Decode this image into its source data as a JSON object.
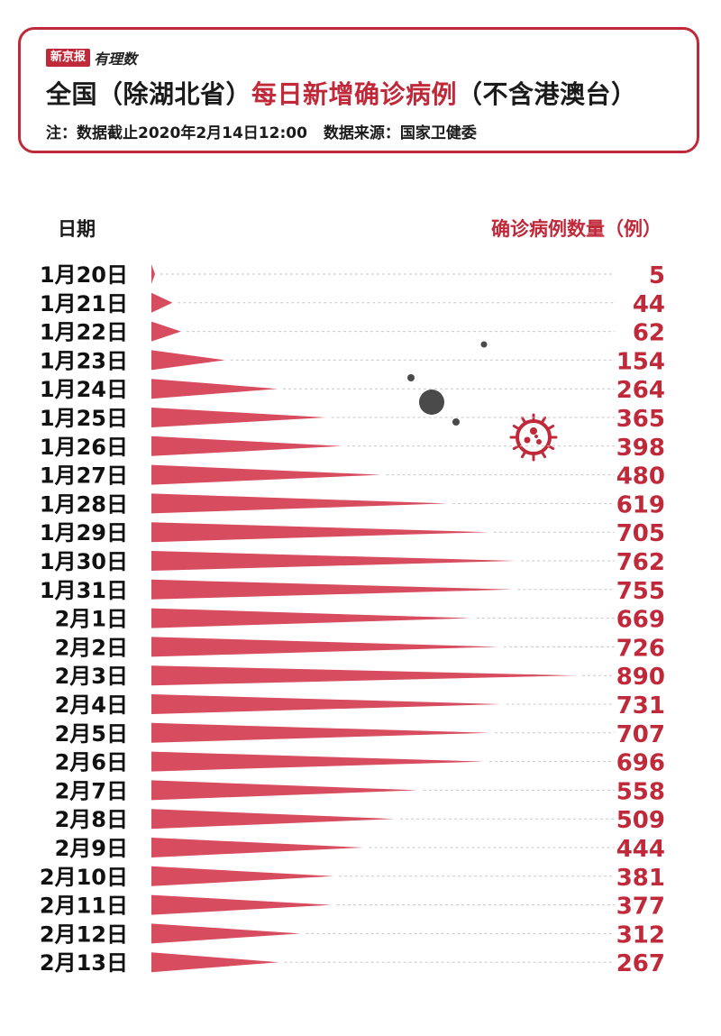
{
  "header": {
    "logo_box": "新京报",
    "logo_script": "有理数",
    "title_black_1": "全国（除湖北省）",
    "title_red": "每日新增确诊病例",
    "title_black_2": "（不含港澳台）",
    "note_label": "注：数据截止2020年2月14日12:00",
    "source_label": "数据来源：国家卫健委"
  },
  "columns": {
    "date": "日期",
    "count": "确诊病例数量（例）"
  },
  "colors": {
    "accent": "#c0293a",
    "bar": "#d74c5e",
    "virus": "#c0293a",
    "dots": "#4a4a4a"
  },
  "chart_data": {
    "type": "bar",
    "orientation": "horizontal",
    "title": "全国（除湖北省）每日新增确诊病例（不含港澳台）",
    "xlabel": "确诊病例数量（例）",
    "ylabel": "日期",
    "categories": [
      "1月20日",
      "1月21日",
      "1月22日",
      "1月23日",
      "1月24日",
      "1月25日",
      "1月26日",
      "1月27日",
      "1月28日",
      "1月29日",
      "1月30日",
      "1月31日",
      "2月1日",
      "2月2日",
      "2月3日",
      "2月4日",
      "2月5日",
      "2月6日",
      "2月7日",
      "2月8日",
      "2月9日",
      "2月10日",
      "2月11日",
      "2月12日",
      "2月13日"
    ],
    "values": [
      5,
      44,
      62,
      154,
      264,
      365,
      398,
      480,
      619,
      705,
      762,
      755,
      669,
      726,
      890,
      731,
      707,
      696,
      558,
      509,
      444,
      381,
      377,
      312,
      267
    ],
    "xlim": [
      0,
      890
    ]
  }
}
